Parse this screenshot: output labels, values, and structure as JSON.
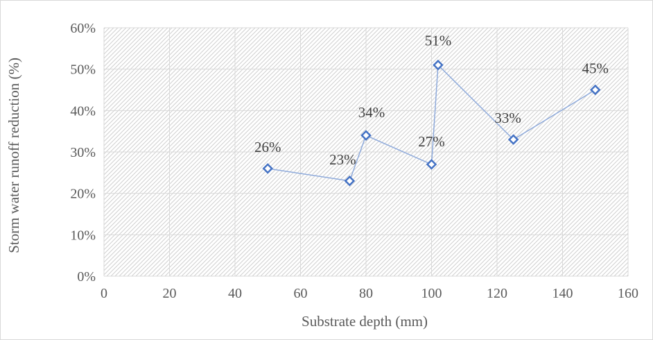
{
  "chart_data": {
    "type": "scatter",
    "title": "",
    "xlabel": "Substrate depth (mm)",
    "ylabel": "Storm water runoff reduction (%)",
    "xlim": [
      0,
      160
    ],
    "ylim": [
      0,
      60
    ],
    "x_ticks": [
      0,
      20,
      40,
      60,
      80,
      100,
      120,
      140,
      160
    ],
    "x_tick_labels": [
      "0",
      "20",
      "40",
      "60",
      "80",
      "100",
      "120",
      "140",
      "160"
    ],
    "y_ticks": [
      0,
      10,
      20,
      30,
      40,
      50,
      60
    ],
    "y_tick_labels": [
      "0%",
      "10%",
      "20%",
      "30%",
      "40%",
      "50%",
      "60%"
    ],
    "grid": true,
    "legend": "none",
    "series": [
      {
        "x": [
          50,
          75,
          80,
          100,
          102,
          125,
          150
        ],
        "y": [
          26,
          23,
          34,
          27,
          51,
          33,
          45
        ],
        "labels": [
          "26%",
          "23%",
          "34%",
          "27%",
          "51%",
          "33%",
          "45%"
        ],
        "marker": "diamond",
        "connected": true
      }
    ],
    "colors": {
      "line": "#8eaadb",
      "marker": "#4472c4",
      "grid": "#d9d9d9",
      "hatch": "#d0d0d0"
    }
  }
}
